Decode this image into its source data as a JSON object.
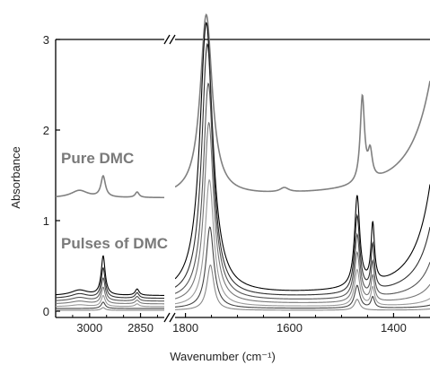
{
  "chart_data": {
    "type": "line",
    "title": "",
    "xlabel": "Wavenumber (cm⁻¹)",
    "ylabel": "Absorbance",
    "ylim": [
      0,
      3
    ],
    "x_segments": [
      {
        "range": [
          3100,
          2780
        ],
        "ticks": [
          3000,
          2850
        ]
      },
      {
        "range": [
          1820,
          1330
        ],
        "ticks": [
          1800,
          1600,
          1400
        ]
      }
    ],
    "x_tick_labels": [
      "3000",
      "2850",
      "1800",
      "1600",
      "1400"
    ],
    "y_ticks": [
      0,
      1,
      2,
      3
    ],
    "y_tick_labels": [
      "0",
      "1",
      "2",
      "3"
    ],
    "annotations": [
      {
        "text": "Pure DMC",
        "color": "#7a7a7a"
      },
      {
        "text": "Pulses of DMC",
        "color": "#7a7a7a"
      }
    ],
    "series": [
      {
        "color": "#808080",
        "baseline": 1.25,
        "peaks": [
          {
            "center": 3030,
            "height": 0.08,
            "width": 30
          },
          {
            "center": 2960,
            "height": 0.23,
            "width": 8
          },
          {
            "center": 2860,
            "height": 0.06,
            "width": 7
          },
          {
            "center": 1760,
            "height": 2.0,
            "width": 14
          },
          {
            "center": 1610,
            "height": 0.05,
            "width": 10
          },
          {
            "center": 1460,
            "height": 0.95,
            "width": 5
          },
          {
            "center": 1445,
            "height": 0.3,
            "width": 5
          },
          {
            "center": 1280,
            "height": 3.3,
            "width": 40
          }
        ]
      },
      {
        "color": "#000000",
        "baseline": 0.17,
        "peaks": [
          {
            "center": 3030,
            "height": 0.06,
            "width": 30
          },
          {
            "center": 2960,
            "height": 0.43,
            "width": 7
          },
          {
            "center": 2860,
            "height": 0.07,
            "width": 7
          },
          {
            "center": 1760,
            "height": 3.0,
            "width": 15
          },
          {
            "center": 1470,
            "height": 1.0,
            "width": 6
          },
          {
            "center": 1440,
            "height": 0.65,
            "width": 4
          },
          {
            "center": 1290,
            "height": 3.4,
            "width": 30
          }
        ]
      },
      {
        "color": "#303030",
        "baseline": 0.14,
        "peaks": [
          {
            "center": 3030,
            "height": 0.05,
            "width": 30
          },
          {
            "center": 2960,
            "height": 0.33,
            "width": 7
          },
          {
            "center": 2860,
            "height": 0.06,
            "width": 7
          },
          {
            "center": 1758,
            "height": 2.8,
            "width": 13
          },
          {
            "center": 1470,
            "height": 0.85,
            "width": 6
          },
          {
            "center": 1440,
            "height": 0.5,
            "width": 4
          },
          {
            "center": 1288,
            "height": 3.0,
            "width": 25
          }
        ]
      },
      {
        "color": "#555555",
        "baseline": 0.11,
        "peaks": [
          {
            "center": 3030,
            "height": 0.04,
            "width": 30
          },
          {
            "center": 2960,
            "height": 0.25,
            "width": 7
          },
          {
            "center": 2860,
            "height": 0.05,
            "width": 7
          },
          {
            "center": 1756,
            "height": 2.4,
            "width": 12
          },
          {
            "center": 1470,
            "height": 0.7,
            "width": 6
          },
          {
            "center": 1440,
            "height": 0.38,
            "width": 4
          },
          {
            "center": 1286,
            "height": 2.5,
            "width": 20
          }
        ]
      },
      {
        "color": "#777777",
        "baseline": 0.08,
        "peaks": [
          {
            "center": 3030,
            "height": 0.03,
            "width": 30
          },
          {
            "center": 2960,
            "height": 0.18,
            "width": 7
          },
          {
            "center": 2860,
            "height": 0.04,
            "width": 7
          },
          {
            "center": 1755,
            "height": 2.0,
            "width": 11
          },
          {
            "center": 1470,
            "height": 0.55,
            "width": 6
          },
          {
            "center": 1440,
            "height": 0.28,
            "width": 4
          },
          {
            "center": 1285,
            "height": 1.9,
            "width": 16
          }
        ]
      },
      {
        "color": "#999999",
        "baseline": 0.05,
        "peaks": [
          {
            "center": 3030,
            "height": 0.02,
            "width": 30
          },
          {
            "center": 2960,
            "height": 0.12,
            "width": 7
          },
          {
            "center": 2860,
            "height": 0.03,
            "width": 7
          },
          {
            "center": 1754,
            "height": 1.4,
            "width": 10
          },
          {
            "center": 1470,
            "height": 0.4,
            "width": 6
          },
          {
            "center": 1440,
            "height": 0.2,
            "width": 4
          },
          {
            "center": 1284,
            "height": 1.2,
            "width": 13
          }
        ]
      },
      {
        "color": "#444444",
        "baseline": 0.03,
        "peaks": [
          {
            "center": 2960,
            "height": 0.07,
            "width": 7
          },
          {
            "center": 1753,
            "height": 0.9,
            "width": 9
          },
          {
            "center": 1470,
            "height": 0.25,
            "width": 6
          },
          {
            "center": 1440,
            "height": 0.12,
            "width": 4
          },
          {
            "center": 1283,
            "height": 0.7,
            "width": 11
          }
        ]
      },
      {
        "color": "#888888",
        "baseline": 0.01,
        "peaks": [
          {
            "center": 2960,
            "height": 0.03,
            "width": 7
          },
          {
            "center": 1752,
            "height": 0.5,
            "width": 8
          },
          {
            "center": 1470,
            "height": 0.12,
            "width": 6
          },
          {
            "center": 1282,
            "height": 0.35,
            "width": 10
          }
        ]
      }
    ]
  }
}
